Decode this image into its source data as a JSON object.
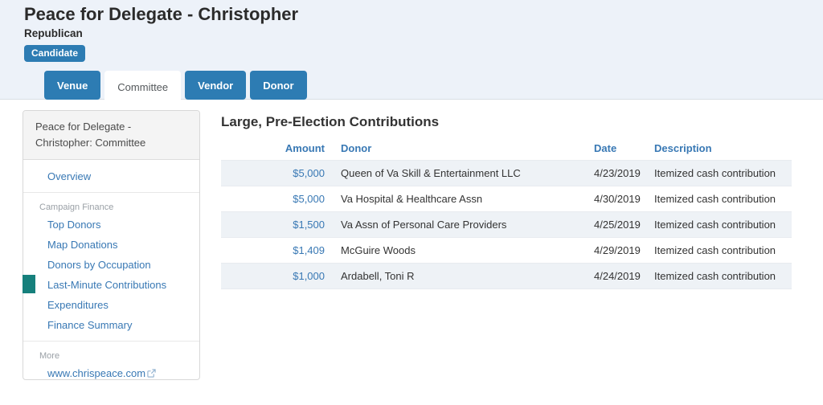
{
  "header": {
    "title": "Peace for Delegate - Christopher",
    "party": "Republican",
    "badge": "Candidate"
  },
  "tabs": [
    {
      "label": "Venue",
      "active": false
    },
    {
      "label": "Committee",
      "active": true
    },
    {
      "label": "Vendor",
      "active": false
    },
    {
      "label": "Donor",
      "active": false
    }
  ],
  "sidebar": {
    "header": "Peace for Delegate - Christopher: Committee",
    "groups": [
      {
        "label": "",
        "items": [
          {
            "label": "Overview",
            "active": false,
            "external": false
          }
        ]
      },
      {
        "label": "Campaign Finance",
        "items": [
          {
            "label": "Top Donors",
            "active": false,
            "external": false
          },
          {
            "label": "Map Donations",
            "active": false,
            "external": false
          },
          {
            "label": "Donors by Occupation",
            "active": false,
            "external": false
          },
          {
            "label": "Last-Minute Contributions",
            "active": true,
            "external": false
          },
          {
            "label": "Expenditures",
            "active": false,
            "external": false
          },
          {
            "label": "Finance Summary",
            "active": false,
            "external": false
          }
        ]
      },
      {
        "label": "More",
        "items": [
          {
            "label": "www.chrispeace.com",
            "active": false,
            "external": true
          }
        ]
      }
    ]
  },
  "main": {
    "heading": "Large, Pre-Election Contributions",
    "table": {
      "columns": [
        "Amount",
        "Donor",
        "Date",
        "Description"
      ],
      "rows": [
        {
          "amount": "$5,000",
          "donor": "Queen of Va Skill & Entertainment LLC",
          "date": "4/23/2019",
          "description": "Itemized cash contribution"
        },
        {
          "amount": "$5,000",
          "donor": "Va Hospital & Healthcare Assn",
          "date": "4/30/2019",
          "description": "Itemized cash contribution"
        },
        {
          "amount": "$1,500",
          "donor": "Va Assn of Personal Care Providers",
          "date": "4/25/2019",
          "description": "Itemized cash contribution"
        },
        {
          "amount": "$1,409",
          "donor": "McGuire Woods",
          "date": "4/29/2019",
          "description": "Itemized cash contribution"
        },
        {
          "amount": "$1,000",
          "donor": "Ardabell, Toni R",
          "date": "4/24/2019",
          "description": "Itemized cash contribution"
        }
      ]
    }
  },
  "colors": {
    "tab_blue": "#2d7cb3",
    "link_blue": "#3878b4",
    "active_marker_teal": "#16807c",
    "row_stripe": "#eef2f6",
    "header_background": "#edf2f9"
  }
}
